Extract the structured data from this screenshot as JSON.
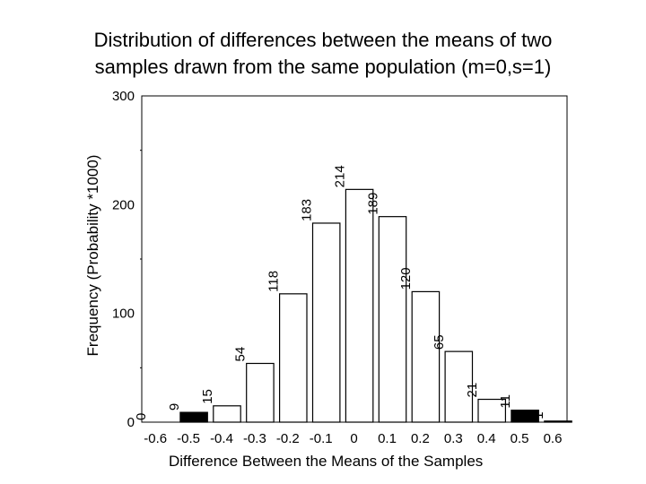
{
  "chart_data": {
    "type": "bar",
    "title_lines": [
      "Distribution of differences between the means of two",
      "samples drawn from the same population (m=0,s=1)"
    ],
    "xlabel": "Difference Between the Means of the Samples",
    "ylabel": "Frequency (Probability *1000)",
    "ylim": [
      0,
      300
    ],
    "y_ticks": [
      0,
      100,
      200,
      300
    ],
    "y_tick_labels": [
      "0",
      "100",
      "200",
      "300"
    ],
    "x_tick_labels": [
      "-0.6",
      "-0.5",
      "-0.4",
      "-0.3",
      "-0.2",
      "-0.1",
      "0",
      "0.1",
      "0.2",
      "0.3",
      "0.4",
      "0.5",
      "0.6"
    ],
    "values": [
      0,
      9,
      15,
      54,
      118,
      183,
      214,
      189,
      120,
      65,
      21,
      11,
      1
    ],
    "value_labels": [
      "0",
      "9",
      "15",
      "54",
      "118",
      "183",
      "214",
      "189",
      "120",
      "65",
      "21",
      "11",
      "1"
    ],
    "highlighted": [
      false,
      true,
      false,
      false,
      false,
      false,
      false,
      false,
      false,
      false,
      false,
      true,
      false
    ],
    "colors": {
      "bar_fill": "#ffffff",
      "highlight_fill": "#000000",
      "stroke": "#000000"
    }
  }
}
